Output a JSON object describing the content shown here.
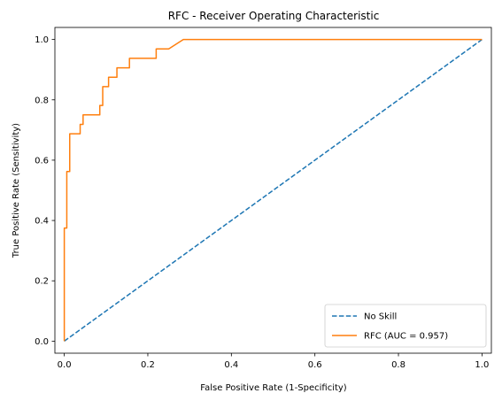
{
  "chart_data": {
    "type": "line",
    "title": "RFC - Receiver Operating Characteristic",
    "xlabel": "False Positive Rate (1-Specificity)",
    "ylabel": "True Positive Rate (Sensitivity)",
    "xlim": [
      -0.0225,
      1.0225
    ],
    "ylim": [
      -0.04,
      1.04
    ],
    "x_ticks": [
      0.0,
      0.2,
      0.4,
      0.6,
      0.8,
      1.0
    ],
    "y_ticks": [
      0.0,
      0.2,
      0.4,
      0.6,
      0.8,
      1.0
    ],
    "x_tick_labels": [
      "0.0",
      "0.2",
      "0.4",
      "0.6",
      "0.8",
      "1.0"
    ],
    "y_tick_labels": [
      "0.0",
      "0.2",
      "0.4",
      "0.6",
      "0.8",
      "1.0"
    ],
    "grid": false,
    "legend_position": "lower-right",
    "series": [
      {
        "name": "No Skill",
        "style": "dashed",
        "color": "#1f77b4",
        "x": [
          0.0,
          1.0
        ],
        "y": [
          0.0,
          1.0
        ]
      },
      {
        "name": "RFC (AUC = 0.957)",
        "style": "solid",
        "color": "#ff7f0e",
        "x": [
          0.0,
          0.0,
          0.006,
          0.006,
          0.013,
          0.013,
          0.038,
          0.038,
          0.045,
          0.045,
          0.085,
          0.085,
          0.092,
          0.092,
          0.106,
          0.106,
          0.126,
          0.126,
          0.156,
          0.156,
          0.22,
          0.22,
          0.25,
          0.285,
          1.0
        ],
        "y": [
          0.0,
          0.375,
          0.375,
          0.5625,
          0.5625,
          0.6875,
          0.6875,
          0.71875,
          0.71875,
          0.75,
          0.75,
          0.78125,
          0.78125,
          0.84375,
          0.84375,
          0.875,
          0.875,
          0.90625,
          0.90625,
          0.9375,
          0.9375,
          0.96875,
          0.96875,
          1.0,
          1.0
        ]
      }
    ]
  }
}
